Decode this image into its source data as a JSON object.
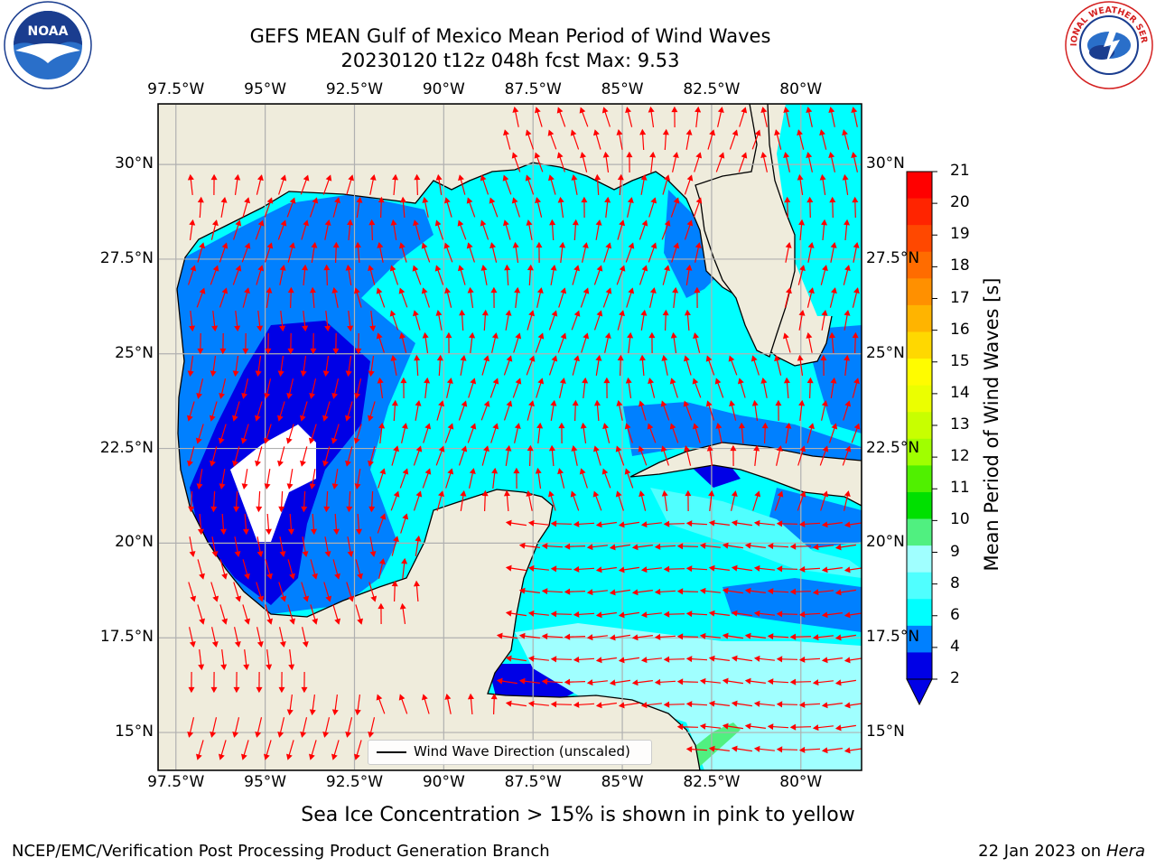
{
  "title_line1": "GEFS MEAN Gulf of Mexico Mean Period of Wind Waves",
  "title_line2": "20230120 t12z 048h fcst   Max: 9.53",
  "logos": {
    "left": "noaa-logo",
    "left_text": "NOAA",
    "right": "nws-logo",
    "right_text": "NATIONAL WEATHER SERVICE"
  },
  "map": {
    "lon_range": [
      -98,
      -78.3
    ],
    "lat_range": [
      14,
      31.6
    ],
    "lon_ticks": [
      "97.5°W",
      "95°W",
      "92.5°W",
      "90°W",
      "87.5°W",
      "85°W",
      "82.5°W",
      "80°W"
    ],
    "lat_ticks_left": [
      "30°N",
      "27.5°N",
      "25°N",
      "22.5°N",
      "20°N",
      "17.5°N",
      "15°N"
    ],
    "lat_ticks_right": [
      "30°N",
      "27.5°N",
      "25°N",
      "22.5°N",
      "20°N",
      "17.5°N",
      "15°N"
    ],
    "land_color": "#efecdc",
    "grid": true
  },
  "colorbar": {
    "label": "Mean Period of Wind Waves [s]",
    "ticks": [
      "21",
      "20",
      "19",
      "18",
      "17",
      "16",
      "15",
      "14",
      "13",
      "12",
      "11",
      "10",
      "9",
      "8",
      "6",
      "4",
      "2"
    ],
    "colors": [
      "#ff0000",
      "#ff2400",
      "#ff4800",
      "#ff6c00",
      "#ff9000",
      "#ffb400",
      "#ffd800",
      "#fffc00",
      "#ebff00",
      "#c8ff00",
      "#a0ff00",
      "#50f000",
      "#00e000",
      "#50f080",
      "#a0ffff",
      "#50ffff",
      "#00ffff",
      "#0080ff",
      "#0000e6"
    ],
    "extend_min_color": "#0000e6"
  },
  "legend": {
    "label": "Wind Wave Direction (unscaled)"
  },
  "ice_note": "Sea Ice Concentration > 15% is shown in pink to yellow",
  "footer_left": "NCEP/EMC/Verification Post Processing Product Generation Branch",
  "footer_right_prefix": "22 Jan 2023 on ",
  "footer_right_host": "Hera"
}
